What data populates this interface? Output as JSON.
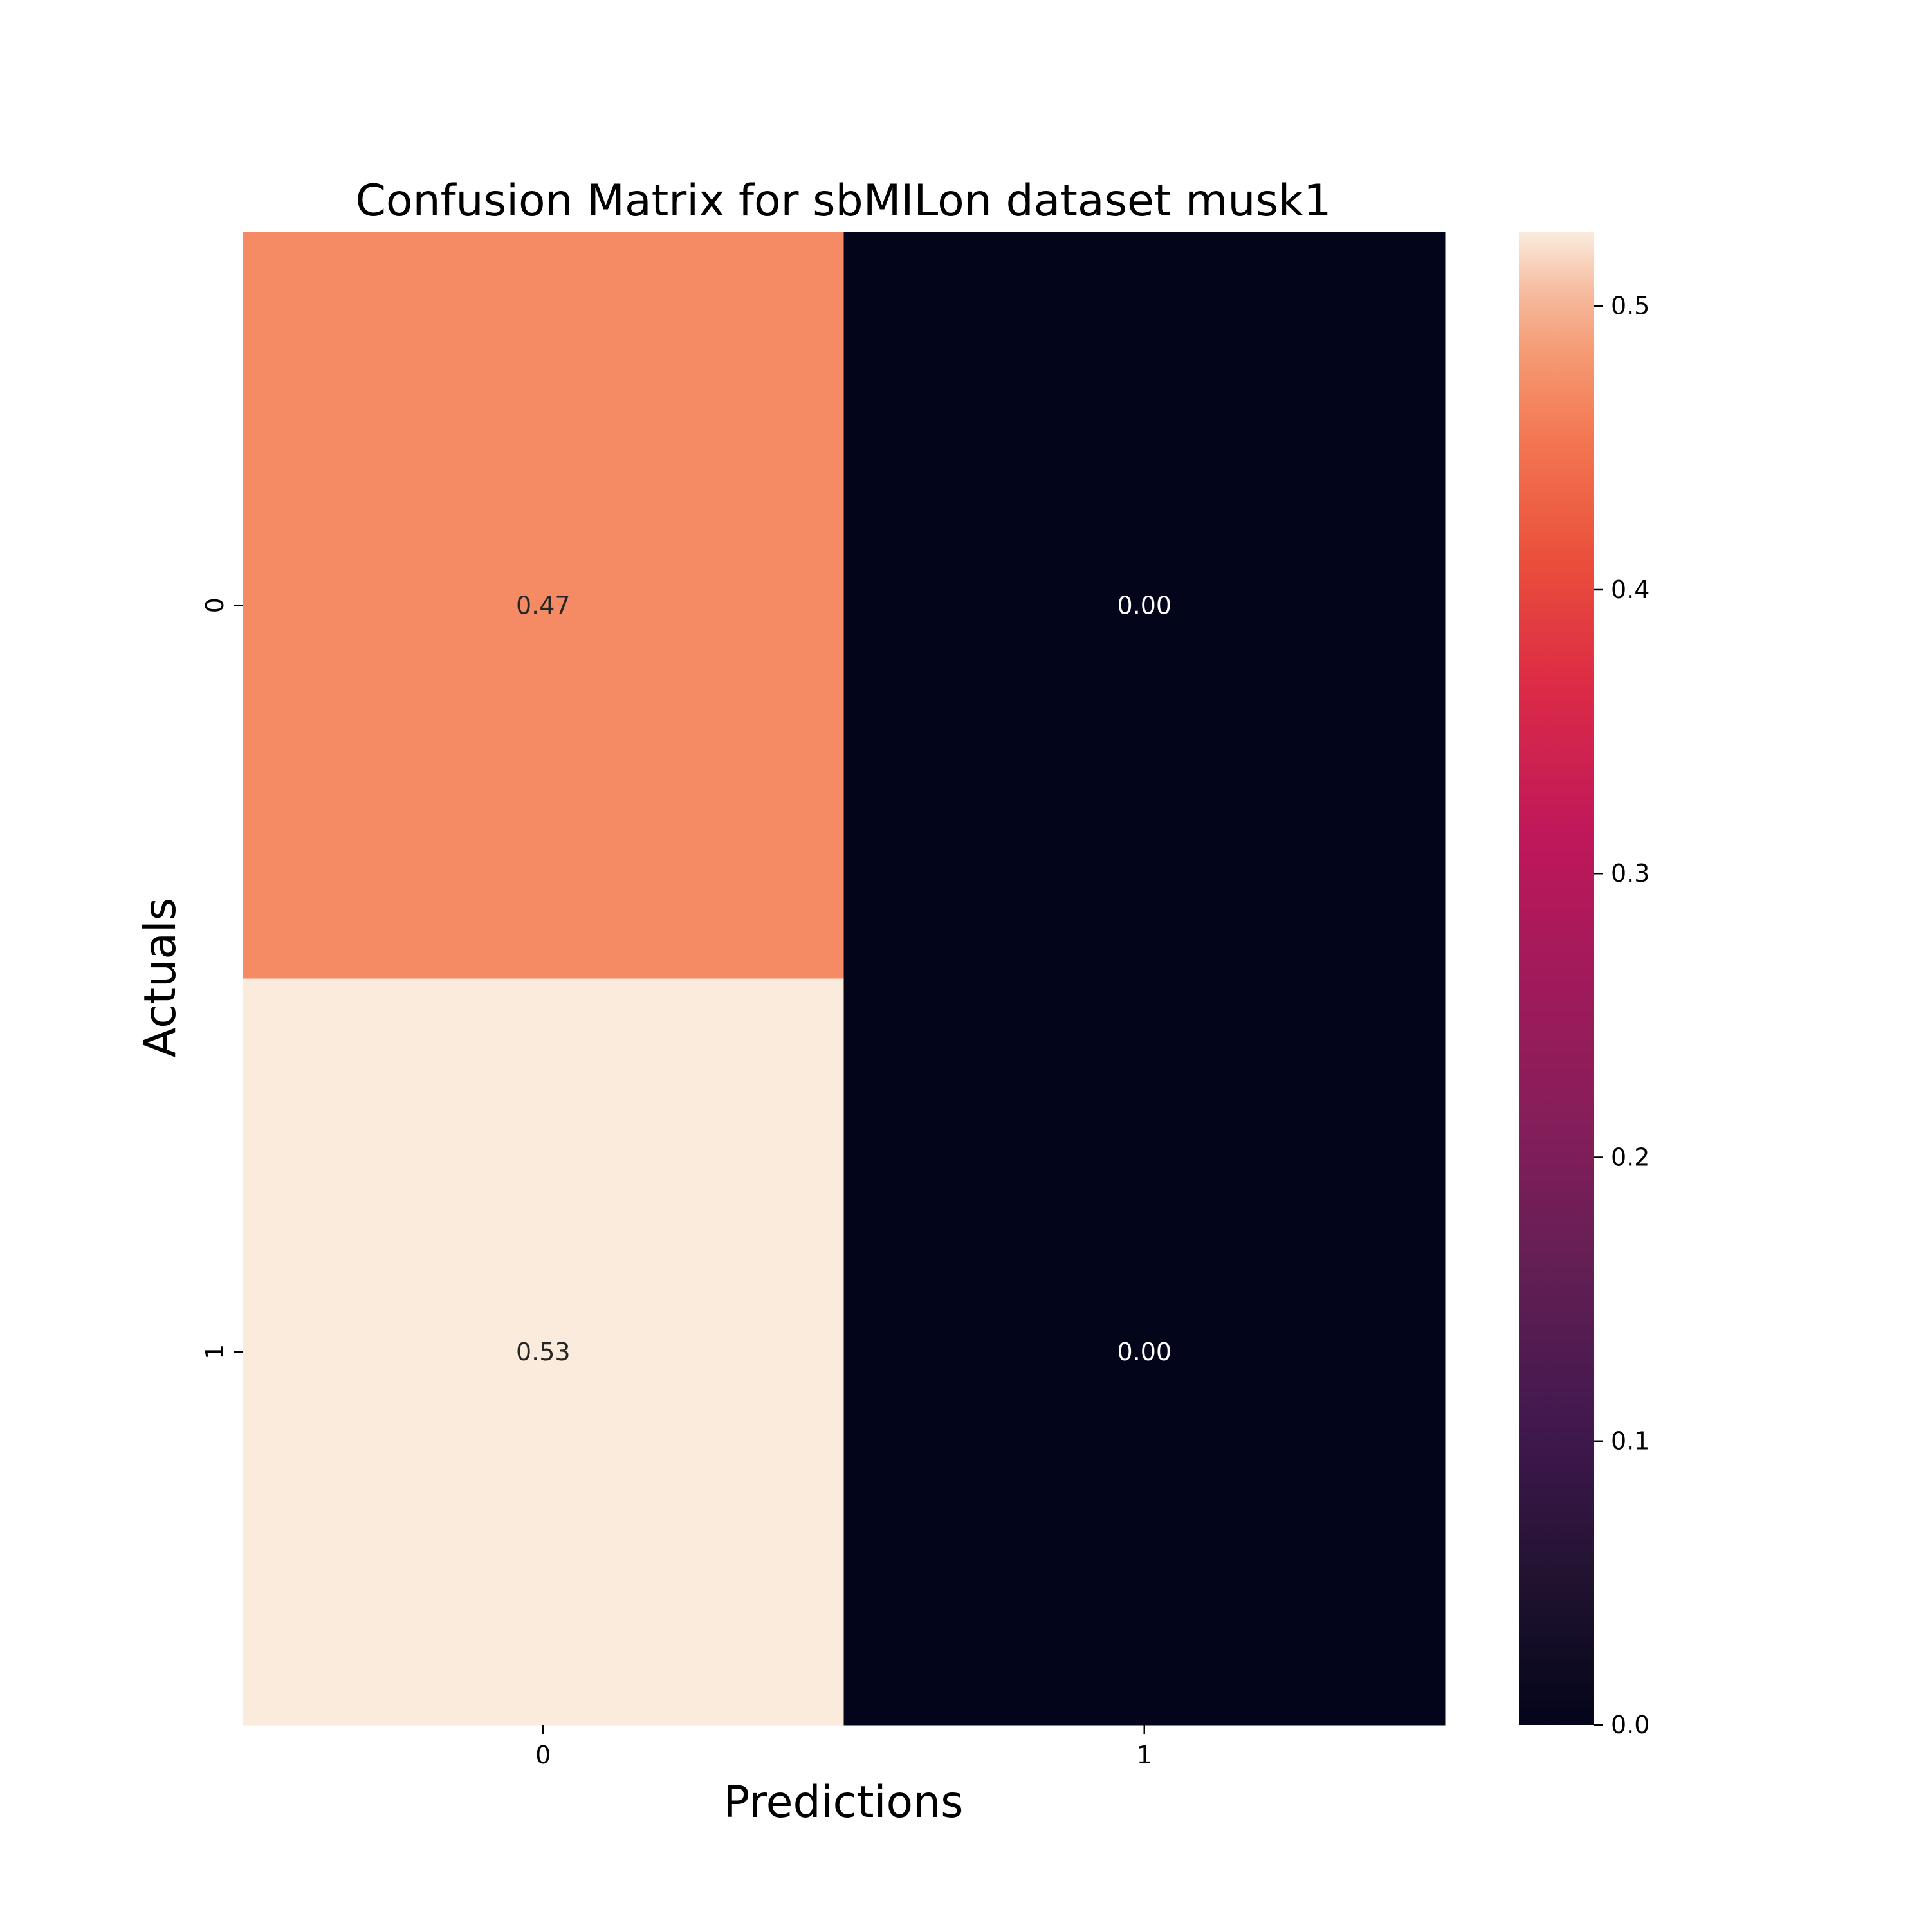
{
  "chart_data": {
    "type": "heatmap",
    "title": "Confusion Matrix for sbMILon dataset musk1",
    "xlabel": "Predictions",
    "ylabel": "Actuals",
    "x_categories": [
      "0",
      "1"
    ],
    "y_categories": [
      "0",
      "1"
    ],
    "values": [
      [
        0.47,
        0.0
      ],
      [
        0.53,
        0.0
      ]
    ],
    "annotations": [
      [
        "0.47",
        "0.00"
      ],
      [
        "0.53",
        "0.00"
      ]
    ],
    "colorbar": {
      "range": [
        0.0,
        0.526
      ],
      "ticks": [
        "0.0",
        "0.1",
        "0.2",
        "0.3",
        "0.4",
        "0.5"
      ],
      "colormap": "rocket"
    },
    "grid": false,
    "legend": "none"
  }
}
